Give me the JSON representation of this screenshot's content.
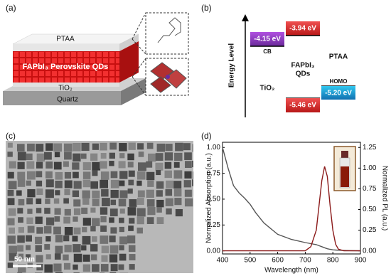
{
  "panel_labels": [
    "(a)",
    "(b)",
    "(c)",
    "(d)"
  ],
  "panel_a": {
    "top_layer": "PTAA",
    "active_layer": "FAPbI₃ Perovskite QDs",
    "etl": "TiO₂",
    "substrate": "Quartz"
  },
  "panel_b": {
    "y_axis_label": "Energy Level",
    "tio2": {
      "name": "TiO₂",
      "band": "CB",
      "level": "-4.15 eV"
    },
    "qds": {
      "name_line1": "FAPbI₃",
      "name_line2": "QDs",
      "upper": "-3.94 eV",
      "lower": "-5.46 eV"
    },
    "ptaa": {
      "name": "PTAA",
      "band": "HOMO",
      "level": "-5.20 eV"
    }
  },
  "panel_c": {
    "scale_bar": "50 nm"
  },
  "chart_data": {
    "type": "line",
    "xlabel": "Wavelength (nm)",
    "ylabel": "Normalized Absorption (a.u.)",
    "y2label": "Normalized PL (a.u.)",
    "x": [
      400,
      420,
      440,
      460,
      480,
      500,
      520,
      550,
      600,
      650,
      700,
      720,
      740,
      750,
      760,
      770,
      780,
      790,
      800,
      810,
      820,
      840,
      860,
      900
    ],
    "series": [
      {
        "color": "#555555",
        "values": [
          1.0,
          0.8,
          0.63,
          0.56,
          0.51,
          0.45,
          0.37,
          0.27,
          0.16,
          0.11,
          0.08,
          0.07,
          0.06,
          0.05,
          0.04,
          0.03,
          0.02,
          0.015,
          0.01,
          0.008,
          0.006,
          0.004,
          0.002,
          0
        ]
      },
      {
        "color": "#8b1a1a",
        "axis": "y2",
        "values": [
          0,
          0,
          0,
          0,
          0,
          0,
          0,
          0,
          0,
          0,
          0,
          0.05,
          0.25,
          0.55,
          0.85,
          1.02,
          0.9,
          0.55,
          0.25,
          0.08,
          0.02,
          0,
          0,
          0
        ]
      }
    ],
    "xlim": [
      400,
      900
    ],
    "xticks": [
      400,
      500,
      600,
      700,
      800,
      900
    ],
    "ylim": [
      -0.03,
      1.05
    ],
    "yticks": [
      {
        "value": 0,
        "label": "0.00"
      },
      {
        "value": 0.25,
        "label": "0.25"
      },
      {
        "value": 0.5,
        "label": "0.50"
      },
      {
        "value": 0.75,
        "label": "0.75"
      },
      {
        "value": 1,
        "label": "1.00"
      }
    ],
    "y2lim": [
      -0.0375,
      1.3125
    ],
    "y2ticks": [
      {
        "value": 0,
        "label": "0.00"
      },
      {
        "value": 0.25,
        "label": "0.25"
      },
      {
        "value": 0.5,
        "label": "0.50"
      },
      {
        "value": 0.75,
        "label": "0.75"
      },
      {
        "value": 1,
        "label": "1.00"
      },
      {
        "value": 1.25,
        "label": "1.25"
      }
    ]
  }
}
